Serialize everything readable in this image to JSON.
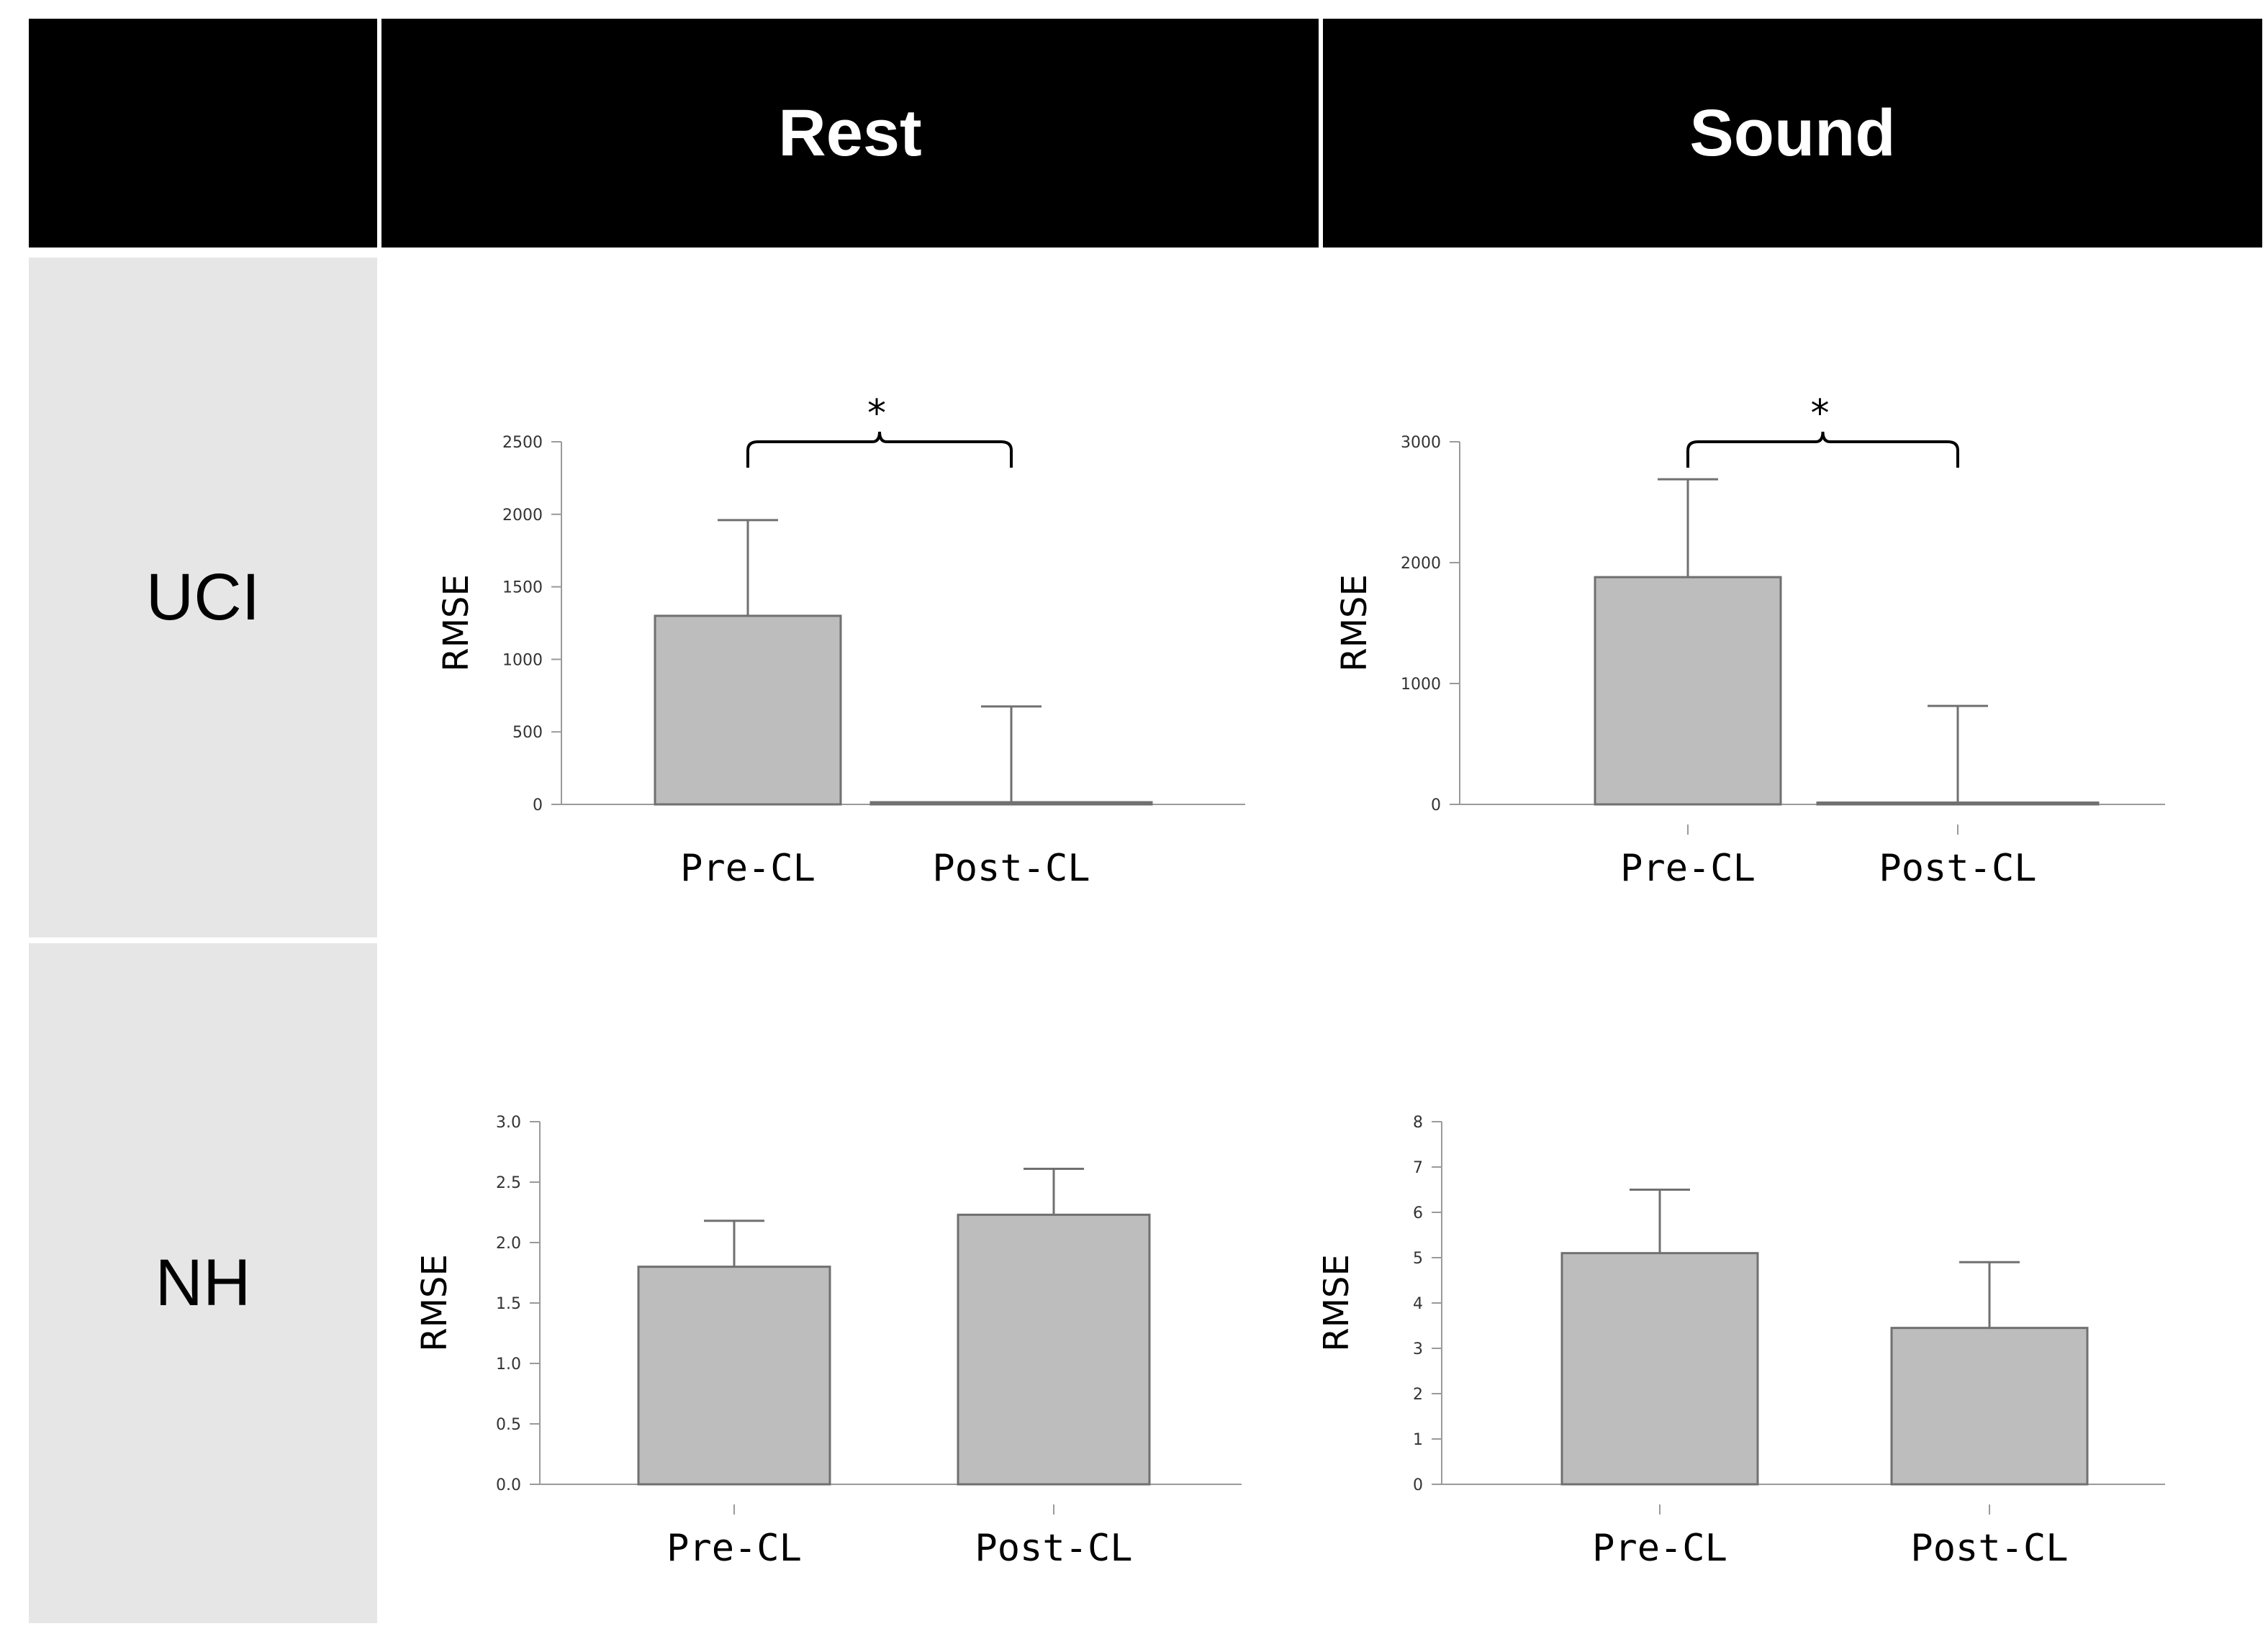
{
  "header": {
    "col1": "Rest",
    "col2": "Sound"
  },
  "rows": {
    "row1": "UCI",
    "row2": "NH"
  },
  "style": {
    "bar_fill": "#bdbdbd",
    "bar_stroke": "#707070",
    "axis_color": "#9a9a9a",
    "header_bg": "#000000",
    "rowlabel_bg": "#e6e6e6"
  },
  "chart_data": [
    {
      "type": "bar",
      "group": "UCI",
      "condition": "Rest",
      "categories": [
        "Pre-CL",
        "Post-CL"
      ],
      "values": [
        1300,
        15
      ],
      "error": [
        660,
        660
      ],
      "ylabel": "RMSE",
      "ylim": [
        0,
        2500
      ],
      "yticks": [
        0,
        500,
        1000,
        1500,
        2000,
        2500
      ],
      "ytick_labels": [
        "0",
        "500",
        "1000",
        "1500",
        "2000",
        "2500"
      ],
      "significance": "*"
    },
    {
      "type": "bar",
      "group": "UCI",
      "condition": "Sound",
      "categories": [
        "Pre-CL",
        "Post-CL"
      ],
      "values": [
        1880,
        15
      ],
      "error": [
        810,
        800
      ],
      "ylabel": "RMSE",
      "ylim": [
        0,
        3000
      ],
      "yticks": [
        0,
        1000,
        2000,
        3000
      ],
      "ytick_labels": [
        "0",
        "1000",
        "2000",
        "3000"
      ],
      "significance": "*"
    },
    {
      "type": "bar",
      "group": "NH",
      "condition": "Rest",
      "categories": [
        "Pre-CL",
        "Post-CL"
      ],
      "values": [
        1.8,
        2.23
      ],
      "error": [
        0.38,
        0.38
      ],
      "ylabel": "RMSE",
      "ylim": [
        0,
        3
      ],
      "yticks": [
        0,
        0.5,
        1,
        1.5,
        2,
        2.5,
        3
      ],
      "ytick_labels": [
        "0.0",
        "0.5",
        "1.0",
        "1.5",
        "2.0",
        "2.5",
        "3.0"
      ],
      "significance": ""
    },
    {
      "type": "bar",
      "group": "NH",
      "condition": "Sound",
      "categories": [
        "Pre-CL",
        "Post-CL"
      ],
      "values": [
        5.1,
        3.45
      ],
      "error": [
        1.4,
        1.45
      ],
      "ylabel": "RMSE",
      "ylim": [
        0,
        8
      ],
      "yticks": [
        0,
        1,
        2,
        3,
        4,
        5,
        6,
        7,
        8
      ],
      "ytick_labels": [
        "0",
        "1",
        "2",
        "3",
        "4",
        "5",
        "6",
        "7",
        "8"
      ],
      "significance": ""
    }
  ]
}
